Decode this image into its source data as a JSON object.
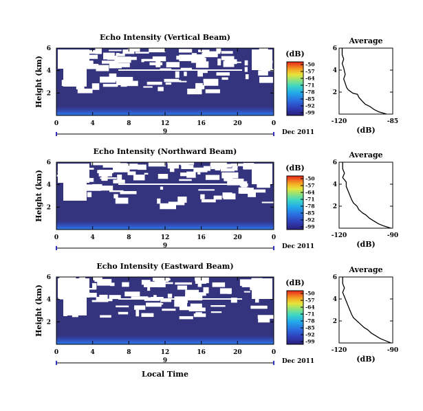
{
  "figure": {
    "xlabel": "Local Time",
    "date_label": "Dec 2011",
    "colorbar_unit": "(dB)",
    "colorbar_ticks": [
      "-50",
      "-57",
      "-64",
      "-71",
      "-78",
      "-85",
      "-92",
      "-99"
    ],
    "profile_title": "Average",
    "profile_xlabel": "(dB)",
    "ylabel": "Height (km)"
  },
  "chart_data": [
    {
      "type": "heatmap",
      "title": "Echo Intensity (Vertical Beam)",
      "ylabel": "Height (km)",
      "xlabel": "",
      "x_ticks": [
        "0",
        "4",
        "8",
        "12",
        "16",
        "20",
        "0"
      ],
      "y_ticks": [
        "6",
        "4",
        "2"
      ],
      "date_day": "9",
      "date_label": "Dec 2011",
      "xlim": [
        0,
        24
      ],
      "ylim": [
        0,
        6
      ],
      "clim": [
        -99,
        -50
      ],
      "colorbar_unit": "(dB)",
      "colorbar_ticks": [
        "-50",
        "-57",
        "-64",
        "-71",
        "-78",
        "-85",
        "-92",
        "-99"
      ]
    },
    {
      "type": "line",
      "title": "Average",
      "xlabel": "(dB)",
      "x_ticks": [
        "-120",
        "-85"
      ],
      "y_ticks": [
        "6",
        "4",
        "2"
      ],
      "xlim": [
        -120,
        -85
      ],
      "ylim": [
        0,
        6
      ],
      "series": [
        {
          "x": [
            -118,
            -118,
            -117,
            -118,
            -117,
            -116,
            -117,
            -116,
            -115,
            -114,
            -111,
            -108,
            -107,
            -105,
            -103,
            -100,
            -97,
            -94,
            -89
          ],
          "y": [
            6.0,
            5.4,
            5.0,
            4.6,
            4.2,
            3.6,
            3.2,
            2.8,
            2.4,
            2.2,
            1.9,
            1.8,
            1.5,
            1.2,
            0.9,
            0.7,
            0.4,
            0.2,
            0.0
          ]
        }
      ]
    },
    {
      "type": "heatmap",
      "title": "Echo Intensity (Northward Beam)",
      "ylabel": "Height (km)",
      "xlabel": "",
      "x_ticks": [
        "0",
        "4",
        "8",
        "12",
        "16",
        "20",
        "0"
      ],
      "y_ticks": [
        "6",
        "4",
        "2"
      ],
      "date_day": "9",
      "date_label": "Dec 2011",
      "xlim": [
        0,
        24
      ],
      "ylim": [
        0,
        6
      ],
      "clim": [
        -99,
        -50
      ],
      "colorbar_unit": "(dB)",
      "colorbar_ticks": [
        "-50",
        "-57",
        "-64",
        "-71",
        "-78",
        "-85",
        "-92",
        "-99"
      ]
    },
    {
      "type": "line",
      "title": "Average",
      "xlabel": "(dB)",
      "x_ticks": [
        "-120",
        "-90"
      ],
      "y_ticks": [
        "6",
        "4",
        "2"
      ],
      "xlim": [
        -120,
        -90
      ],
      "ylim": [
        0,
        6
      ],
      "series": [
        {
          "x": [
            -118,
            -118,
            -117,
            -118,
            -116,
            -116,
            -115,
            -114,
            -113,
            -112,
            -110,
            -109,
            -107,
            -105,
            -103,
            -101,
            -98,
            -95,
            -91
          ],
          "y": [
            6.0,
            5.4,
            5.0,
            4.6,
            4.2,
            3.8,
            3.4,
            3.0,
            2.6,
            2.3,
            2.0,
            1.7,
            1.4,
            1.2,
            0.9,
            0.7,
            0.4,
            0.2,
            0.0
          ]
        }
      ]
    },
    {
      "type": "heatmap",
      "title": "Echo Intensity (Eastward Beam)",
      "ylabel": "Height (km)",
      "xlabel": "Local Time",
      "x_ticks": [
        "0",
        "4",
        "8",
        "12",
        "16",
        "20",
        "0"
      ],
      "y_ticks": [
        "6",
        "4",
        "2"
      ],
      "date_day": "9",
      "date_label": "Dec 2011",
      "xlim": [
        0,
        24
      ],
      "ylim": [
        0,
        6
      ],
      "clim": [
        -99,
        -50
      ],
      "colorbar_unit": "(dB)",
      "colorbar_ticks": [
        "-50",
        "-57",
        "-64",
        "-71",
        "-78",
        "-85",
        "-92",
        "-99"
      ]
    },
    {
      "type": "line",
      "title": "Average",
      "xlabel": "(dB)",
      "x_ticks": [
        "-120",
        "-90"
      ],
      "y_ticks": [
        "6",
        "4",
        "2"
      ],
      "xlim": [
        -120,
        -90
      ],
      "ylim": [
        0,
        6
      ],
      "series": [
        {
          "x": [
            -118,
            -118,
            -117,
            -118,
            -117,
            -116,
            -115,
            -114,
            -113,
            -112,
            -110,
            -108,
            -106,
            -104,
            -102,
            -100,
            -97,
            -94,
            -91
          ],
          "y": [
            6.0,
            5.4,
            5.0,
            4.6,
            4.2,
            3.8,
            3.4,
            3.0,
            2.6,
            2.3,
            2.0,
            1.7,
            1.4,
            1.2,
            0.9,
            0.7,
            0.4,
            0.2,
            0.0
          ]
        }
      ]
    }
  ]
}
